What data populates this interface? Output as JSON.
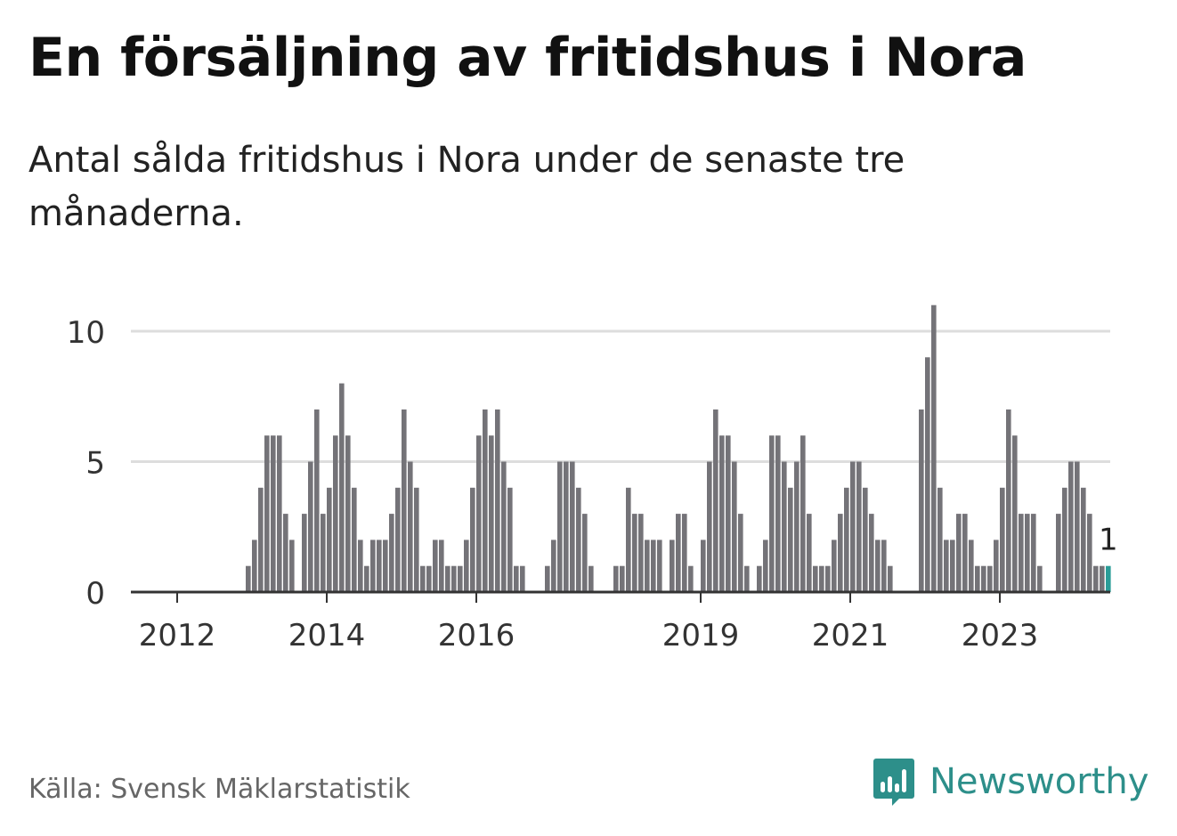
{
  "title": "En försäljning av fritidshus i Nora",
  "subtitle": "Antal sålda fritidshus i Nora under de senaste tre månaderna.",
  "source": "Källa: Svensk Mäklarstatistik",
  "brand": {
    "name": "Newsworthy",
    "icon": "newsworthy-logo-icon",
    "color": "#2d8f8a"
  },
  "chart_data": {
    "type": "bar",
    "start_year": 2012,
    "start_month": 1,
    "values": [
      0,
      0,
      0,
      0,
      0,
      0,
      0,
      0,
      0,
      0,
      0,
      1,
      2,
      4,
      6,
      6,
      6,
      3,
      2,
      0,
      3,
      5,
      7,
      3,
      4,
      6,
      8,
      6,
      4,
      2,
      1,
      2,
      2,
      2,
      3,
      4,
      7,
      5,
      4,
      1,
      1,
      2,
      2,
      1,
      1,
      1,
      2,
      4,
      6,
      7,
      6,
      7,
      5,
      4,
      1,
      1,
      0,
      0,
      0,
      1,
      2,
      5,
      5,
      5,
      4,
      3,
      1,
      0,
      0,
      0,
      1,
      1,
      4,
      3,
      3,
      2,
      2,
      2,
      0,
      2,
      3,
      3,
      1,
      0,
      2,
      5,
      7,
      6,
      6,
      5,
      3,
      1,
      0,
      1,
      2,
      6,
      6,
      5,
      4,
      5,
      6,
      3,
      1,
      1,
      1,
      2,
      3,
      4,
      5,
      5,
      4,
      3,
      2,
      2,
      1,
      0,
      0,
      0,
      0,
      7,
      9,
      11,
      4,
      2,
      2,
      3,
      3,
      2,
      1,
      1,
      1,
      2,
      4,
      7,
      6,
      3,
      3,
      3,
      1,
      0,
      0,
      3,
      4,
      5,
      5,
      4,
      3,
      1,
      1,
      1
    ],
    "highlight_last": true,
    "highlight_label": "1",
    "bar_color": "#747378",
    "highlight_color": "#2a9d98",
    "x_tick_labels": [
      "2012",
      "2014",
      "2016",
      "2019",
      "2021",
      "2023"
    ],
    "y_tick_labels": [
      "0",
      "5",
      "10"
    ],
    "ylim": [
      0,
      11
    ],
    "grid": true
  }
}
